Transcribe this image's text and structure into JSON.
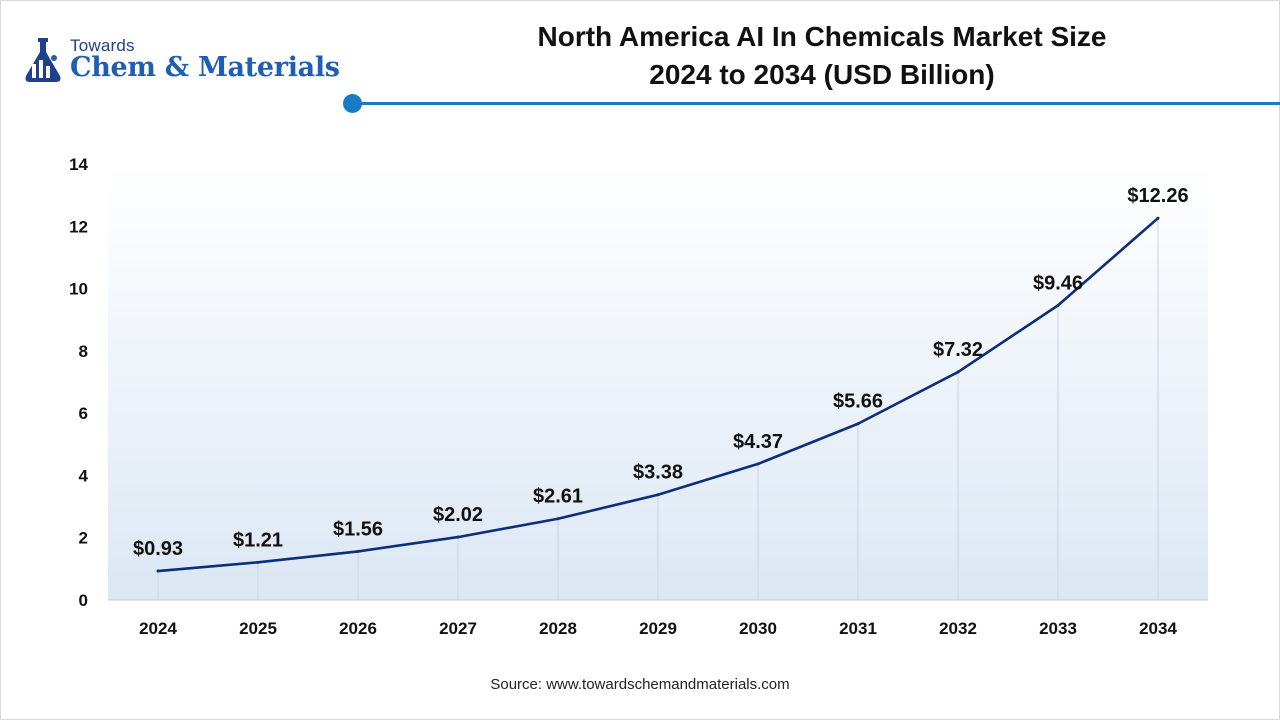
{
  "brand": {
    "line1": "Towards",
    "line2": "Chem & Materials"
  },
  "chart_data": {
    "type": "line",
    "title_line1": "North America AI In Chemicals Market Size",
    "title_line2": "2024 to 2034 (USD Billion)",
    "categories": [
      "2024",
      "2025",
      "2026",
      "2027",
      "2028",
      "2029",
      "2030",
      "2031",
      "2032",
      "2033",
      "2034"
    ],
    "values": [
      0.93,
      1.21,
      1.56,
      2.02,
      2.61,
      3.38,
      4.37,
      5.66,
      7.32,
      9.46,
      12.26
    ],
    "labels": [
      "$0.93",
      "$1.21",
      "$1.56",
      "$2.02",
      "$2.61",
      "$3.38",
      "$4.37",
      "$5.66",
      "$7.32",
      "$9.46",
      "$12.26"
    ],
    "ylim": [
      0,
      14
    ],
    "yticks": [
      0,
      2,
      4,
      6,
      8,
      10,
      12,
      14
    ],
    "xlabel": "",
    "ylabel": "",
    "grid": "vertical",
    "line_color": "#0b2f7a"
  },
  "source": "Source: www.towardschemandmaterials.com"
}
